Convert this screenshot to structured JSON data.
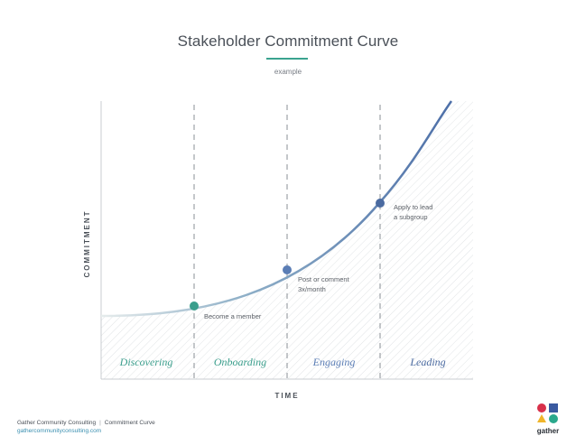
{
  "header": {
    "title": "Stakeholder Commitment Curve",
    "subtitle": "example"
  },
  "chart": {
    "ylabel": "COMMITMENT",
    "xlabel": "TIME",
    "stages": [
      "Discovering",
      "Onboarding",
      "Engaging",
      "Leading"
    ],
    "stage_colors": [
      "#3a9e8c",
      "#3a9e8c",
      "#5a7db5",
      "#4a6aa0"
    ],
    "milestones": [
      {
        "lines": [
          "Become a member"
        ],
        "color": "#3a9e8c"
      },
      {
        "lines": [
          "Post or comment",
          "3x/month"
        ],
        "color": "#5a7db5"
      },
      {
        "lines": [
          "Apply to lead",
          "a subgroup"
        ],
        "color": "#4a6aa0"
      }
    ],
    "curve_colors": {
      "start": "#e6ecec",
      "mid": "#8fb0c8",
      "end": "#4d6fa8"
    }
  },
  "footer": {
    "company": "Gather Community Consulting",
    "doc": "Commitment Curve",
    "url": "gathercommunityconsulting.com",
    "logo_text": "gather",
    "logo_colors": {
      "circle_red": "#d8304a",
      "square_blue": "#3a5aa0",
      "triangle_yellow": "#f0b52a",
      "circle_teal": "#2aa88c"
    }
  }
}
